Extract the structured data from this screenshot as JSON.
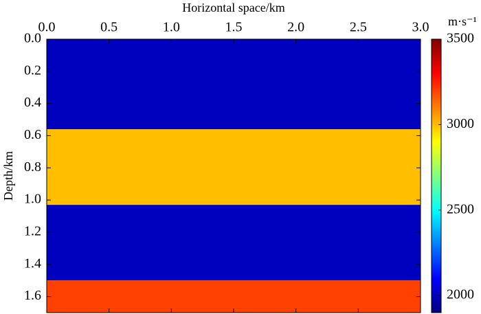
{
  "chart_data": {
    "type": "layered-heatmap",
    "x_label": "Horizontal space/km",
    "y_label": "Depth/km",
    "colorbar_label": "m·s⁻¹",
    "colormap": "jet",
    "xlim": [
      0,
      3
    ],
    "ylim": [
      0,
      1.7
    ],
    "xticks": [
      {
        "value": 0,
        "label": "0.0"
      },
      {
        "value": 0.5,
        "label": "0.5"
      },
      {
        "value": 1,
        "label": "1.0"
      },
      {
        "value": 1.5,
        "label": "1.5"
      },
      {
        "value": 2,
        "label": "2.0"
      },
      {
        "value": 2.5,
        "label": "2.5"
      },
      {
        "value": 3,
        "label": "3.0"
      }
    ],
    "yticks": [
      {
        "value": 0,
        "label": "0.0"
      },
      {
        "value": 0.2,
        "label": "0.2"
      },
      {
        "value": 0.4,
        "label": "0.4"
      },
      {
        "value": 0.6,
        "label": "0.6"
      },
      {
        "value": 0.8,
        "label": "0.8"
      },
      {
        "value": 1,
        "label": "1.0"
      },
      {
        "value": 1.2,
        "label": "1.2"
      },
      {
        "value": 1.4,
        "label": "1.4"
      },
      {
        "value": 1.6,
        "label": "1.6"
      }
    ],
    "y_edges": [
      0,
      0.56,
      1.03,
      1.5,
      1.7
    ],
    "values": [
      2000,
      3000,
      2000,
      3200
    ],
    "clim": [
      1900,
      3500
    ],
    "cticks": [
      2000,
      2500,
      3000,
      3500
    ]
  }
}
